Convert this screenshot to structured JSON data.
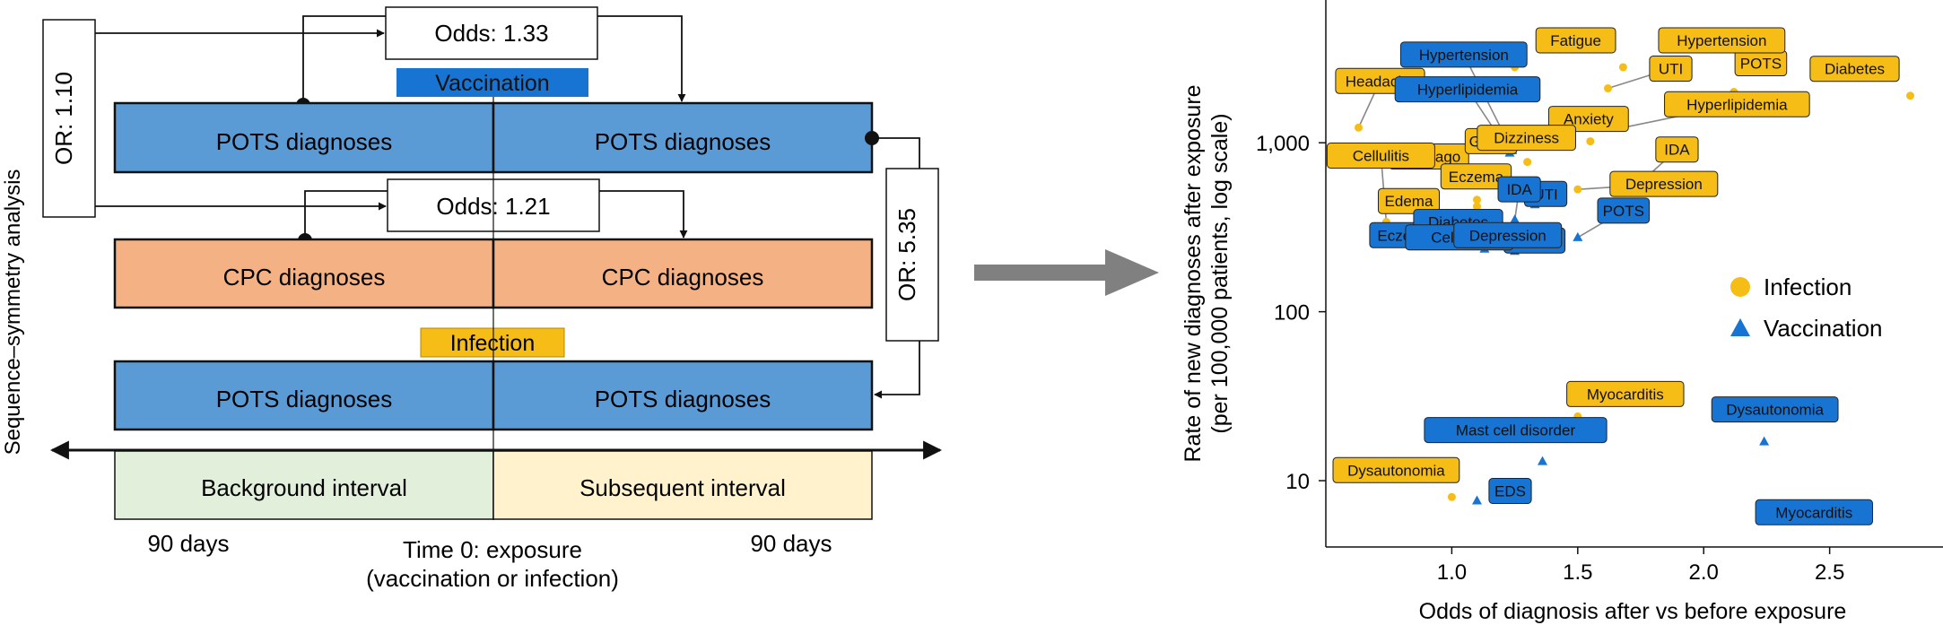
{
  "diagram": {
    "side_label": "Sequence–symmetry analysis",
    "odds_top": "Odds: 1.33",
    "odds_mid": "Odds: 1.21",
    "or_left": "OR: 1.10",
    "or_right": "OR: 5.35",
    "vaccination_label": "Vaccination",
    "infection_label": "Infection",
    "pots_label": "POTS diagnoses",
    "cpc_label": "CPC diagnoses",
    "background_interval": "Background interval",
    "subsequent_interval": "Subsequent interval",
    "days_left": "90 days",
    "days_right": "90 days",
    "time0_line1": "Time 0: exposure",
    "time0_line2": "(vaccination or infection)"
  },
  "colors": {
    "blue_row": "#5b9bd5",
    "orange_row": "#f4b183",
    "background_interval": "#e2efda",
    "subsequent_interval": "#fff2cc",
    "vaccination_tag": "#1874d2",
    "infection_tag": "#f6bd16",
    "arrow_gray": "#808080"
  },
  "chart_data": {
    "type": "scatter",
    "xlabel": "Odds of diagnosis after vs before exposure",
    "ylabel_line1": "Rate of new diagnoses after exposure",
    "ylabel_line2": "(per 100,000 patients, log scale)",
    "x_range": [
      0.5,
      2.95
    ],
    "y_range": [
      4.05,
      7000
    ],
    "y_scale": "log",
    "x_ticks": [
      1.0,
      1.5,
      2.0,
      2.5
    ],
    "x_tick_labels": [
      "1.0",
      "1.5",
      "2.0",
      "2.5"
    ],
    "y_ticks": [
      10,
      100,
      1000
    ],
    "y_tick_labels": [
      "10",
      "100",
      "1,000"
    ],
    "legend": {
      "position": "right",
      "items": [
        {
          "name": "Infection",
          "marker": "circle"
        },
        {
          "name": "Vaccination",
          "marker": "triangle"
        }
      ]
    },
    "series": [
      {
        "name": "Infection",
        "marker": "circle",
        "color": "#f6bd16",
        "points": [
          {
            "label": "Diabetes",
            "x": 2.82,
            "y": 1900
          },
          {
            "label": "POTS",
            "x": 2.12,
            "y": 2000
          },
          {
            "label": "Hyperlipidemia",
            "x": 1.68,
            "y": 1230
          },
          {
            "label": "UTI",
            "x": 1.62,
            "y": 2100
          },
          {
            "label": "Fatigue",
            "x": 1.25,
            "y": 2800
          },
          {
            "label": "Hypertension",
            "x": 1.68,
            "y": 2800
          },
          {
            "label": "Headache",
            "x": 0.63,
            "y": 1230
          },
          {
            "label": "Lumbago",
            "x": 1.03,
            "y": 780
          },
          {
            "label": "GERD",
            "x": 1.17,
            "y": 700
          },
          {
            "label": "Anxiety",
            "x": 1.55,
            "y": 1020
          },
          {
            "label": "Dizziness",
            "x": 1.3,
            "y": 770
          },
          {
            "label": "IDA",
            "x": 1.78,
            "y": 640
          },
          {
            "label": "Depression",
            "x": 1.5,
            "y": 530
          },
          {
            "label": "Eczema",
            "x": 1.1,
            "y": 460
          },
          {
            "label": "Edema",
            "x": 1.1,
            "y": 420
          },
          {
            "label": "Cellulitis",
            "x": 0.74,
            "y": 340
          },
          {
            "label": "Myocarditis",
            "x": 1.5,
            "y": 24
          },
          {
            "label": "Dysautonomia",
            "x": 1.0,
            "y": 8
          }
        ]
      },
      {
        "name": "Vaccination",
        "marker": "triangle",
        "color": "#1874d2",
        "points": [
          {
            "label": "Hypertension",
            "x": 1.24,
            "y": 900
          },
          {
            "label": "Hyperlipidemia",
            "x": 1.23,
            "y": 870
          },
          {
            "label": "UTI",
            "x": 1.33,
            "y": 430
          },
          {
            "label": "IDA",
            "x": 1.25,
            "y": 350
          },
          {
            "label": "POTS",
            "x": 1.5,
            "y": 275
          },
          {
            "label": "Eczema",
            "x": 1.12,
            "y": 345
          },
          {
            "label": "Diabetes",
            "x": 1.15,
            "y": 340
          },
          {
            "label": "Edema",
            "x": 1.25,
            "y": 228
          },
          {
            "label": "Cellulitis",
            "x": 1.13,
            "y": 235
          },
          {
            "label": "Depression",
            "x": 1.19,
            "y": 345
          },
          {
            "label": "Mast cell disorder",
            "x": 1.36,
            "y": 13
          },
          {
            "label": "Dysautonomia",
            "x": 2.24,
            "y": 17
          },
          {
            "label": "EDS",
            "x": 1.1,
            "y": 7.6
          },
          {
            "label": "Myocarditis",
            "x": 2.57,
            "y": 6.5
          }
        ]
      }
    ]
  }
}
